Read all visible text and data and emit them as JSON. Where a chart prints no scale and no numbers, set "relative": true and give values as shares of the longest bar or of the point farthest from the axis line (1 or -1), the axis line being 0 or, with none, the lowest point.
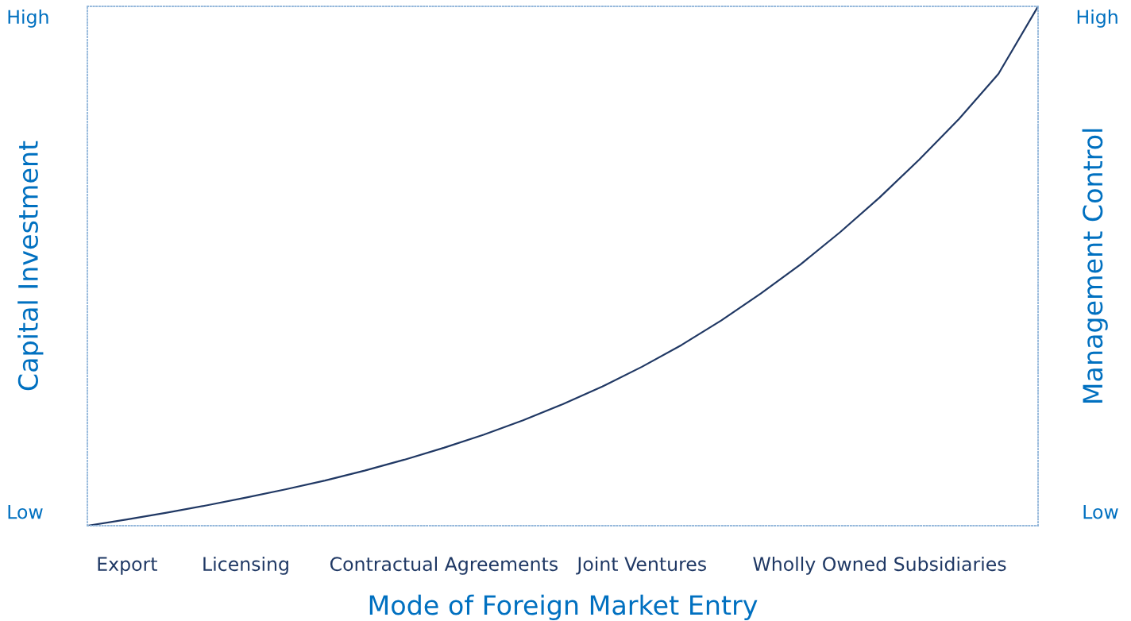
{
  "chart_data": {
    "type": "line",
    "relative": true,
    "xlabel": "Mode of Foreign Market Entry",
    "ylabel": "Capital Investment",
    "y2label": "Management Control",
    "categories": [
      null,
      "Export",
      null,
      null,
      "Licensing",
      null,
      null,
      null,
      null,
      "Contractual Agreements",
      null,
      null,
      null,
      null,
      "Joint Ventures",
      null,
      null,
      null,
      null,
      null,
      "Wholly Owned Subsidiaries",
      null,
      null,
      null,
      null
    ],
    "series": [
      {
        "color": "#203864",
        "values": [
          0,
          0.012,
          0.025,
          0.039,
          0.054,
          0.07,
          0.087,
          0.106,
          0.127,
          0.15,
          0.175,
          0.203,
          0.234,
          0.268,
          0.306,
          0.348,
          0.395,
          0.447,
          0.503,
          0.565,
          0.632,
          0.705,
          0.783,
          0.87,
          1
        ]
      }
    ],
    "annotations": [
      "High",
      "Low",
      "High",
      "Low"
    ],
    "grid": false,
    "legend": false,
    "marker": "none",
    "line_style": "solid"
  }
}
